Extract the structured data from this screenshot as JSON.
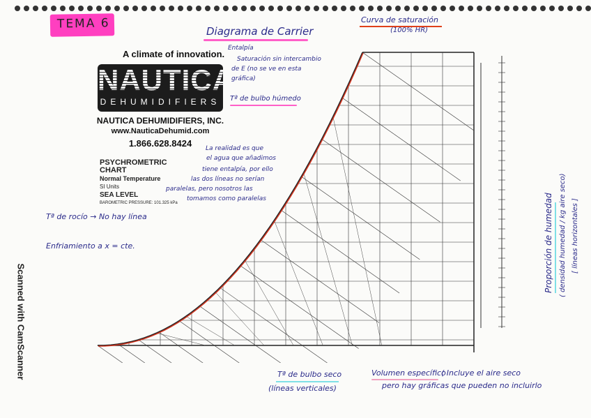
{
  "header": {
    "topic": "TEMA 6",
    "title": "Diagrama de Carrier"
  },
  "brand": {
    "tagline": "A climate of innovation.",
    "logo_text": "NAUTICA",
    "logo_sub": "DEHUMIDIFIERS",
    "company": "NAUTICA DEHUMIDIFIERS, INC.",
    "website": "www.NauticaDehumid.com",
    "phone": "1.866.628.8424"
  },
  "chart_info": {
    "title": "PSYCHROMETRIC",
    "title2": "CHART",
    "range": "Normal Temperature",
    "units": "SI Units",
    "altitude": "SEA LEVEL",
    "pressure": "BAROMETRIC PRESSURE: 101.325 kPa"
  },
  "notes": {
    "entalpia": "Entalpía",
    "saturacion_1": "Saturación sin intercambio",
    "saturacion_2": "de E (no se ve en esta",
    "saturacion_3": "gráfica)",
    "bulbo_humedo": "Tª de bulbo húmedo",
    "realidad_1": "La realidad es que",
    "realidad_2": "el agua que añadimos",
    "realidad_3": "tiene entalpía, por ello",
    "realidad_4": "las dos líneas no serían",
    "realidad_5": "paralelas, pero nosotros las",
    "realidad_6": "tomamos como paralelas",
    "rocio": "Tª de rocío → No hay línea",
    "enfriamiento": "Enfriamiento a x = cte.",
    "curva_1": "Curva de saturación",
    "curva_2": "(100% HR)",
    "bulbo_seco_1": "Tª de bulbo seco",
    "bulbo_seco_2": "(líneas verticales)",
    "volumen_1": "Volumen específico",
    "volumen_2": "( Incluye el aire seco",
    "volumen_3": "pero hay gráficas que pueden no incluirlo",
    "proporcion_1": "Proporción de humedad",
    "proporcion_2": "( densidad humedad / kg aire seco)",
    "proporcion_3": "[ líneas horizontales ]"
  },
  "watermark": "Scanned with CamScanner",
  "colors": {
    "highlight_pink": "#ff3fc0",
    "ink": "#2a2a8a",
    "saturation_curve": "#d0301a",
    "highlight_cyan": "#7fe0e6"
  }
}
